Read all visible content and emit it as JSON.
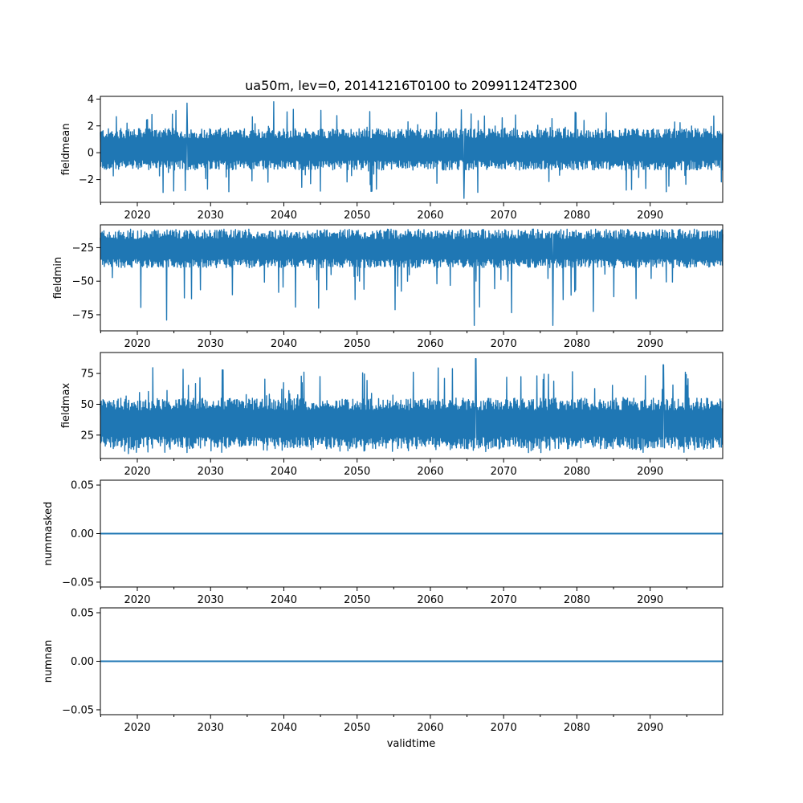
{
  "title": "ua50m, lev=0, 20141216T0100 to 20991124T2300",
  "xlabel": "validtime",
  "line_color": "#1f77b4",
  "chart_data": [
    {
      "type": "line",
      "ylabel": "fieldmean",
      "xlim": [
        2014.96,
        2099.9
      ],
      "ylim": [
        -3.7,
        4.2
      ],
      "x_ticks": [
        "2020",
        "2030",
        "2040",
        "2050",
        "2060",
        "2070",
        "2080",
        "2090"
      ],
      "y_ticks": [
        -2,
        0,
        2,
        4
      ],
      "y_tick_labels": [
        "−2",
        "0",
        "2",
        "4"
      ],
      "band": {
        "typical_min": -1.3,
        "typical_max": 1.8,
        "peak_max": 3.8,
        "peak_min": -3.4
      },
      "notable": [
        {
          "x": 2038.6,
          "y": 3.8
        },
        {
          "x": 2064.6,
          "y": -3.4
        },
        {
          "x": 2026.8,
          "y": 3.7
        }
      ]
    },
    {
      "type": "line",
      "ylabel": "fieldmin",
      "xlim": [
        2014.96,
        2099.9
      ],
      "ylim": [
        -87,
        -8
      ],
      "x_ticks": [
        "2020",
        "2030",
        "2040",
        "2050",
        "2060",
        "2070",
        "2080",
        "2090"
      ],
      "y_ticks": [
        -75,
        -50,
        -25
      ],
      "y_tick_labels": [
        "−75",
        "−50",
        "−25"
      ],
      "band": {
        "typical_min": -40,
        "typical_max": -12,
        "peak_max": -11,
        "peak_min": -83
      },
      "notable": [
        {
          "x": 2066.0,
          "y": -83
        },
        {
          "x": 2076.7,
          "y": -83
        },
        {
          "x": 2024.0,
          "y": -79
        }
      ]
    },
    {
      "type": "line",
      "ylabel": "fieldmax",
      "xlim": [
        2014.96,
        2099.9
      ],
      "ylim": [
        6,
        92
      ],
      "x_ticks": [
        "2020",
        "2030",
        "2040",
        "2050",
        "2060",
        "2070",
        "2080",
        "2090"
      ],
      "y_ticks": [
        25,
        50,
        75
      ],
      "y_tick_labels": [
        "25",
        "50",
        "75"
      ],
      "band": {
        "typical_min": 14,
        "typical_max": 55,
        "peak_max": 87,
        "peak_min": 10
      },
      "notable": [
        {
          "x": 2066.2,
          "y": 87
        },
        {
          "x": 2091.8,
          "y": 82
        },
        {
          "x": 2018.8,
          "y": 10
        }
      ]
    },
    {
      "type": "line",
      "ylabel": "nummasked",
      "xlim": [
        2014.96,
        2099.9
      ],
      "ylim": [
        -0.055,
        0.055
      ],
      "x_ticks": [
        "2020",
        "2030",
        "2040",
        "2050",
        "2060",
        "2070",
        "2080",
        "2090"
      ],
      "y_ticks": [
        -0.05,
        0.0,
        0.05
      ],
      "y_tick_labels": [
        "−0.05",
        "0.00",
        "0.05"
      ],
      "constant_value": 0.0
    },
    {
      "type": "line",
      "ylabel": "numnan",
      "xlim": [
        2014.96,
        2099.9
      ],
      "ylim": [
        -0.055,
        0.055
      ],
      "x_ticks": [
        "2020",
        "2030",
        "2040",
        "2050",
        "2060",
        "2070",
        "2080",
        "2090"
      ],
      "y_ticks": [
        -0.05,
        0.0,
        0.05
      ],
      "y_tick_labels": [
        "−0.05",
        "0.00",
        "0.05"
      ],
      "constant_value": 0.0
    }
  ]
}
